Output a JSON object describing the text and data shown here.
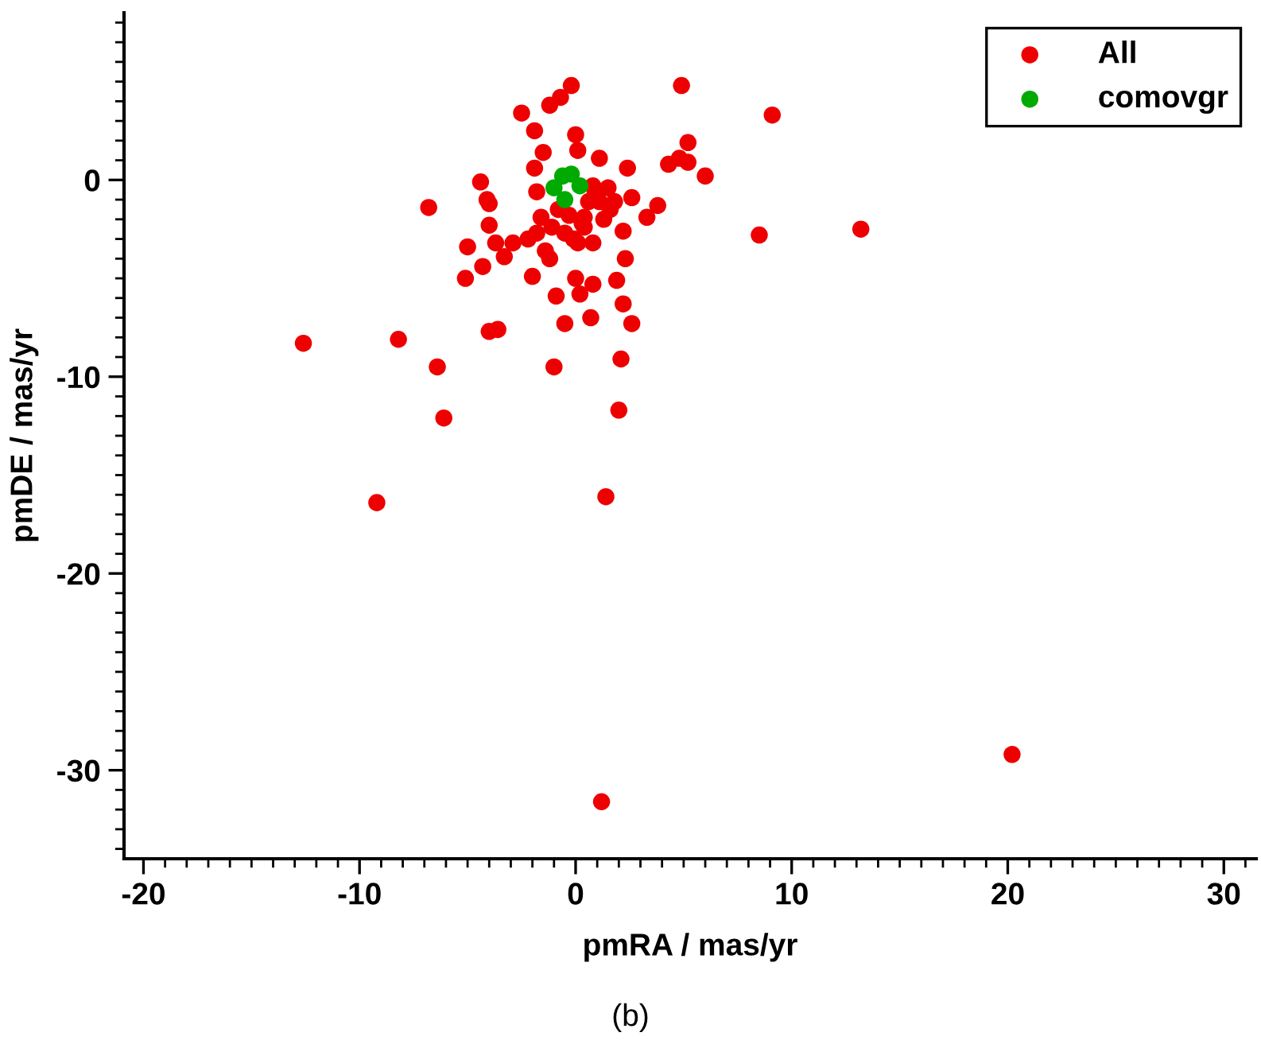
{
  "chart_data": {
    "type": "scatter",
    "xlabel": "pmRA / mas/yr",
    "ylabel": "pmDE / mas/yr",
    "xlim": [
      -20.9,
      31.5
    ],
    "ylim": [
      -34.5,
      8.5
    ],
    "xticks": [
      -20,
      -10,
      0,
      10,
      20,
      30
    ],
    "yticks": [
      -30,
      -20,
      -10,
      0
    ],
    "grid": false,
    "legend": "top right",
    "marker": "circle",
    "annotations": [
      "(b)"
    ],
    "series": [
      {
        "name": "All",
        "color": "#ee0000",
        "x": [
          -12.6,
          -8.2,
          -6.4,
          -6.1,
          -9.2,
          -4.0,
          -3.6,
          -1.0,
          -0.9,
          -0.5,
          0.7,
          2.2,
          2.6,
          2.1,
          2.0,
          1.4,
          1.2,
          20.2,
          13.2,
          8.5,
          9.1,
          -0.2,
          -0.7,
          -1.2,
          -2.5,
          -1.9,
          0.0,
          0.1,
          -1.5,
          1.1,
          2.4,
          -1.9,
          5.2,
          4.9,
          4.3,
          4.8,
          5.2,
          6.0,
          -4.4,
          -6.8,
          -4.1,
          -4.0,
          -4.0,
          -5.0,
          -5.1,
          -4.3,
          -3.7,
          -3.3,
          -2.9,
          -2.0,
          1.9,
          2.3,
          0.0,
          0.8,
          0.2,
          2.6,
          2.2,
          3.3,
          3.8,
          1.5,
          1.8,
          -1.8,
          -1.6,
          -1.8,
          -1.1,
          -1.4,
          -0.5,
          -0.1,
          0.4,
          0.6,
          0.8,
          0.1,
          0.8,
          1.1,
          0.4,
          -2.2,
          -0.8,
          0.3,
          1.3,
          -0.3,
          1.6,
          -1.2,
          0.9
        ],
        "values": [
          -8.3,
          -8.1,
          -9.5,
          -12.1,
          -16.4,
          -7.7,
          -7.6,
          -9.5,
          -5.9,
          -7.3,
          -7.0,
          -6.3,
          -7.3,
          -9.1,
          -11.7,
          -16.1,
          -31.6,
          -29.2,
          -2.5,
          -2.8,
          3.3,
          4.8,
          4.2,
          3.8,
          3.4,
          2.5,
          2.3,
          1.5,
          1.4,
          1.1,
          0.6,
          0.6,
          1.9,
          4.8,
          0.8,
          1.1,
          0.9,
          0.2,
          -0.1,
          -1.4,
          -1.0,
          -1.2,
          -2.3,
          -3.4,
          -5.0,
          -4.4,
          -3.2,
          -3.9,
          -3.2,
          -4.9,
          -5.1,
          -4.0,
          -5.0,
          -5.3,
          -5.8,
          -0.9,
          -2.6,
          -1.9,
          -1.3,
          -0.4,
          -1.1,
          -0.6,
          -1.9,
          -2.7,
          -2.4,
          -3.6,
          -2.7,
          -3.0,
          -1.9,
          -1.1,
          -0.3,
          -3.2,
          -3.2,
          -1.1,
          -2.4,
          -3.0,
          -1.5,
          -2.2,
          -2.0,
          -1.8,
          -1.5,
          -4.0,
          -0.7
        ]
      },
      {
        "name": "comovgr",
        "color": "#00aa00",
        "x": [
          -1.0,
          -0.6,
          -0.2,
          0.2,
          -0.5
        ],
        "values": [
          -0.4,
          0.2,
          0.3,
          -0.3,
          -1.0
        ]
      }
    ]
  }
}
